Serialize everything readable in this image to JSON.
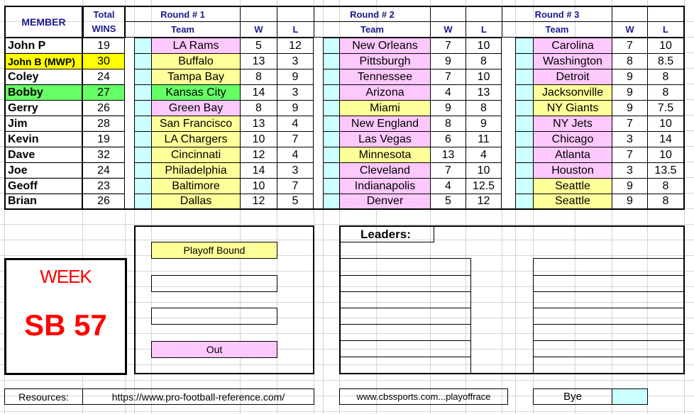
{
  "header": {
    "member": "MEMBER",
    "total": "Total",
    "wins": "WINS",
    "team": "Team",
    "w": "W",
    "l": "L",
    "rounds": [
      "Round # 1",
      "Round # 2",
      "Round # 3"
    ]
  },
  "colors": {
    "pink": "#ffccff",
    "yellow": "#ffff99",
    "green": "#66ff66",
    "gold": "#ffff00",
    "cyan": "#ccffff",
    "red": "#ff0000",
    "header_blue": "#1a1a8c"
  },
  "members": [
    {
      "name": "John P",
      "wins": "19",
      "hl": "",
      "picks": [
        [
          "LA Rams",
          "5",
          "12",
          "pink"
        ],
        [
          "New Orleans",
          "7",
          "10",
          "pink"
        ],
        [
          "Carolina",
          "7",
          "10",
          "pink"
        ]
      ]
    },
    {
      "name": "John B (MWP)",
      "wins": "30",
      "hl": "gold",
      "picks": [
        [
          "Buffalo",
          "13",
          "3",
          "yellow"
        ],
        [
          "Pittsburgh",
          "9",
          "8",
          "pink"
        ],
        [
          "Washington",
          "8",
          "8.5",
          "pink"
        ]
      ]
    },
    {
      "name": "Coley",
      "wins": "24",
      "hl": "",
      "picks": [
        [
          "Tampa Bay",
          "8",
          "9",
          "yellow"
        ],
        [
          "Tennessee",
          "7",
          "10",
          "pink"
        ],
        [
          "Detroit",
          "9",
          "8",
          "pink"
        ]
      ]
    },
    {
      "name": "Bobby",
      "wins": "27",
      "hl": "green",
      "picks": [
        [
          "Kansas City",
          "14",
          "3",
          "green"
        ],
        [
          "Arizona",
          "4",
          "13",
          "pink"
        ],
        [
          "Jacksonville",
          "9",
          "8",
          "yellow"
        ]
      ]
    },
    {
      "name": "Gerry",
      "wins": "26",
      "hl": "",
      "picks": [
        [
          "Green Bay",
          "8",
          "9",
          "pink"
        ],
        [
          "Miami",
          "9",
          "8",
          "yellow"
        ],
        [
          "NY Giants",
          "9",
          "7.5",
          "yellow"
        ]
      ]
    },
    {
      "name": "Jim",
      "wins": "28",
      "hl": "",
      "picks": [
        [
          "San Francisco",
          "13",
          "4",
          "yellow"
        ],
        [
          "New England",
          "8",
          "9",
          "pink"
        ],
        [
          "NY Jets",
          "7",
          "10",
          "pink"
        ]
      ]
    },
    {
      "name": "Kevin",
      "wins": "19",
      "hl": "",
      "picks": [
        [
          "LA Chargers",
          "10",
          "7",
          "yellow"
        ],
        [
          "Las Vegas",
          "6",
          "11",
          "pink"
        ],
        [
          "Chicago",
          "3",
          "14",
          "pink"
        ]
      ]
    },
    {
      "name": "Dave",
      "wins": "32",
      "hl": "",
      "picks": [
        [
          "Cincinnati",
          "12",
          "4",
          "yellow"
        ],
        [
          "Minnesota",
          "13",
          "4",
          "yellow"
        ],
        [
          "Atlanta",
          "7",
          "10",
          "pink"
        ]
      ]
    },
    {
      "name": "Joe",
      "wins": "24",
      "hl": "",
      "picks": [
        [
          "Philadelphia",
          "14",
          "3",
          "yellow"
        ],
        [
          "Cleveland",
          "7",
          "10",
          "pink"
        ],
        [
          "Houston",
          "3",
          "13.5",
          "pink"
        ]
      ]
    },
    {
      "name": "Geoff",
      "wins": "23",
      "hl": "",
      "picks": [
        [
          "Baltimore",
          "10",
          "7",
          "yellow"
        ],
        [
          "Indianapolis",
          "4",
          "12.5",
          "pink"
        ],
        [
          "Seattle",
          "9",
          "8",
          "yellow"
        ]
      ]
    },
    {
      "name": "Brian",
      "wins": "26",
      "hl": "",
      "picks": [
        [
          "Dallas",
          "12",
          "5",
          "yellow"
        ],
        [
          "Denver",
          "5",
          "12",
          "pink"
        ],
        [
          "Seattle",
          "9",
          "8",
          "yellow"
        ]
      ]
    }
  ],
  "legend": {
    "playoff": "Playoff Bound",
    "out": "Out"
  },
  "week": {
    "label": "WEEK",
    "value": "SB 57"
  },
  "leaders": {
    "title": "Leaders:"
  },
  "resources": {
    "label": "Resources:",
    "link1": "https://www.pro-football-reference.com/",
    "link2": "www.cbssports.com...playoffrace",
    "bye": "Bye"
  }
}
